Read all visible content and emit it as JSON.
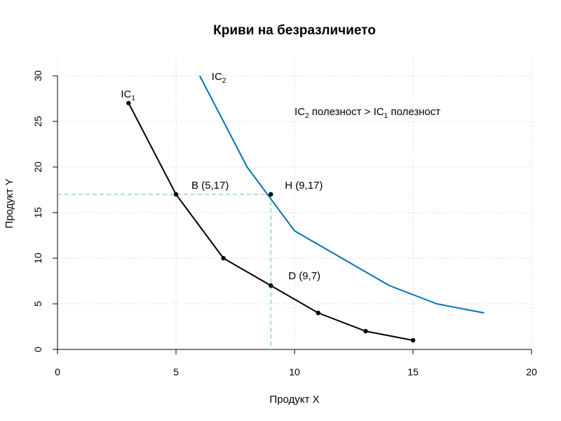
{
  "chart_data": {
    "type": "line",
    "title": "Криви на безразличието",
    "xlabel": "Продукт X",
    "ylabel": "Продукт Y",
    "xlim": [
      0,
      20
    ],
    "ylim": [
      0,
      30
    ],
    "x_ticks": [
      0,
      5,
      10,
      15,
      20
    ],
    "y_ticks": [
      0,
      5,
      10,
      15,
      20,
      25,
      30
    ],
    "grid": true,
    "colors": {
      "ic1": "#000000",
      "ic2": "#0072b2",
      "guide": "#7ec8e3"
    },
    "series": [
      {
        "id": "ic1",
        "label": {
          "base": "IC",
          "sub": "1"
        },
        "x": [
          3,
          5,
          7,
          9,
          11,
          13,
          15
        ],
        "y": [
          27,
          17,
          10,
          7,
          4,
          2,
          1
        ],
        "markers": true
      },
      {
        "id": "ic2",
        "label": {
          "base": "IC",
          "sub": "2"
        },
        "x": [
          6,
          8,
          10,
          12,
          14,
          16,
          18
        ],
        "y": [
          30,
          20,
          13,
          10,
          7,
          5,
          4
        ],
        "markers": false
      }
    ],
    "points": [
      {
        "id": "b",
        "label": "B (5,17)",
        "x": 5,
        "y": 17
      },
      {
        "id": "h",
        "label": "H (9,17)",
        "x": 9,
        "y": 17
      },
      {
        "id": "d",
        "label": "D (9,7)",
        "x": 9,
        "y": 7
      }
    ],
    "annotation": {
      "a": "IC",
      "a_sub": "2",
      "b": " полезност > IC",
      "b_sub": "1",
      "c": " полезност"
    }
  }
}
